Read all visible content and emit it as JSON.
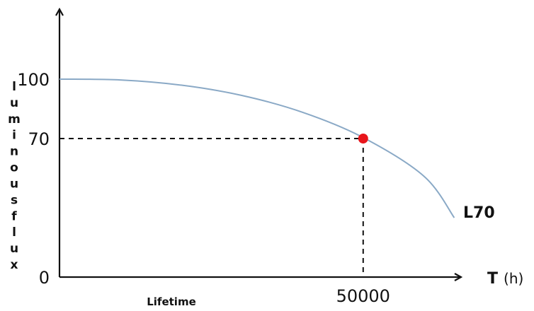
{
  "chart_data": {
    "type": "line",
    "ylabel": "luminous flux",
    "xlabel_symbol": "T",
    "xlabel_unit": "(h)",
    "x_region_label": "Lifetime",
    "y_ticks": [
      "0",
      "70",
      "100"
    ],
    "x_ticks": [
      "50000"
    ],
    "xlim": [
      0,
      66000
    ],
    "ylim": [
      0,
      135
    ],
    "series": [
      {
        "name": "L70",
        "x": [
          0,
          10000,
          20000,
          30000,
          40000,
          50000,
          60000,
          65000
        ],
        "y": [
          100,
          99.6,
          97,
          91.8,
          83.3,
          70.5,
          51,
          30
        ]
      }
    ],
    "marker": {
      "x": 50000,
      "y": 70
    },
    "colors": {
      "curve": "#8aa9c6",
      "marker": "#e8151b",
      "series_label": "#1f5fae",
      "axis": "#111111"
    }
  }
}
